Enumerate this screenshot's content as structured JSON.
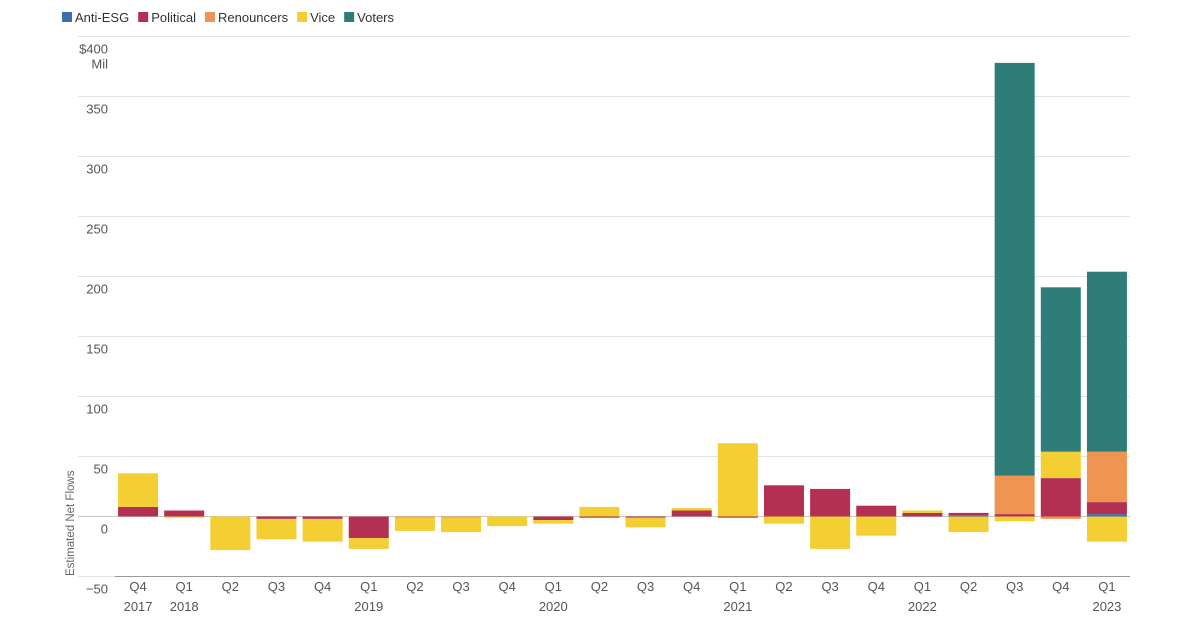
{
  "colors": {
    "Anti-ESG": "#3a6fb0",
    "Political": "#b33052",
    "Renouncers": "#ef9451",
    "Vice": "#f3cf33",
    "Voters": "#2f7d78",
    "grid": "#e3e3e3",
    "axis": "#9a9a9a"
  },
  "chart_data": {
    "type": "bar",
    "stacked": true,
    "title": "",
    "ylabel": "Estimated Net Flows",
    "y_unit_label": "Mil",
    "ylim": [
      -50,
      400
    ],
    "y_ticks": [
      -50,
      0,
      50,
      100,
      150,
      200,
      250,
      300,
      350,
      400
    ],
    "y_tick_labels": [
      "−50",
      "0",
      "50",
      "100",
      "150",
      "200",
      "250",
      "300",
      "350",
      "$400"
    ],
    "grid": true,
    "legend_position": "top-left",
    "categories": [
      "Q4 2017",
      "Q1 2018",
      "Q2 2018",
      "Q3 2018",
      "Q4 2018",
      "Q1 2019",
      "Q2 2019",
      "Q3 2019",
      "Q4 2019",
      "Q1 2020",
      "Q2 2020",
      "Q3 2020",
      "Q4 2020",
      "Q1 2021",
      "Q2 2021",
      "Q3 2021",
      "Q4 2021",
      "Q1 2022",
      "Q2 2022",
      "Q3 2022",
      "Q4 2022",
      "Q1 2023"
    ],
    "x_tick_labels": [
      {
        "q": "Q4",
        "y": "2017"
      },
      {
        "q": "Q1",
        "y": "2018"
      },
      {
        "q": "Q2",
        "y": ""
      },
      {
        "q": "Q3",
        "y": ""
      },
      {
        "q": "Q4",
        "y": ""
      },
      {
        "q": "Q1",
        "y": "2019"
      },
      {
        "q": "Q2",
        "y": ""
      },
      {
        "q": "Q3",
        "y": ""
      },
      {
        "q": "Q4",
        "y": ""
      },
      {
        "q": "Q1",
        "y": "2020"
      },
      {
        "q": "Q2",
        "y": ""
      },
      {
        "q": "Q3",
        "y": ""
      },
      {
        "q": "Q4",
        "y": ""
      },
      {
        "q": "Q1",
        "y": "2021"
      },
      {
        "q": "Q2",
        "y": ""
      },
      {
        "q": "Q3",
        "y": ""
      },
      {
        "q": "Q4",
        "y": ""
      },
      {
        "q": "Q1",
        "y": "2022"
      },
      {
        "q": "Q2",
        "y": ""
      },
      {
        "q": "Q3",
        "y": ""
      },
      {
        "q": "Q4",
        "y": ""
      },
      {
        "q": "Q1",
        "y": "2023"
      }
    ],
    "series": [
      {
        "name": "Anti-ESG",
        "values": [
          0,
          0,
          0,
          0,
          0,
          0,
          0,
          0,
          0,
          0,
          0,
          0,
          0,
          0,
          0,
          0,
          0,
          0,
          1,
          0,
          0,
          2
        ]
      },
      {
        "name": "Political",
        "values": [
          8,
          5,
          0,
          -2,
          -2,
          -18,
          0,
          0,
          0,
          -3,
          -1,
          -1,
          5,
          -1,
          26,
          23,
          9,
          3,
          2,
          2,
          32,
          10
        ]
      },
      {
        "name": "Renouncers",
        "values": [
          0,
          0,
          0,
          0,
          0,
          0,
          -1,
          -1,
          0,
          0,
          0,
          0,
          0,
          0,
          0,
          0,
          0,
          0,
          0,
          32,
          -2,
          42
        ]
      },
      {
        "name": "Vice",
        "values": [
          28,
          -1,
          -28,
          -17,
          -19,
          -9,
          -11,
          -12,
          -8,
          -3,
          8,
          -8,
          2,
          61,
          -6,
          -27,
          -16,
          2,
          -13,
          -4,
          22,
          -21
        ]
      },
      {
        "name": "Voters",
        "values": [
          0,
          0,
          0,
          0,
          0,
          0,
          0,
          0,
          0,
          0,
          0,
          0,
          0,
          0,
          0,
          0,
          0,
          0,
          0,
          344,
          137,
          150
        ]
      }
    ]
  }
}
